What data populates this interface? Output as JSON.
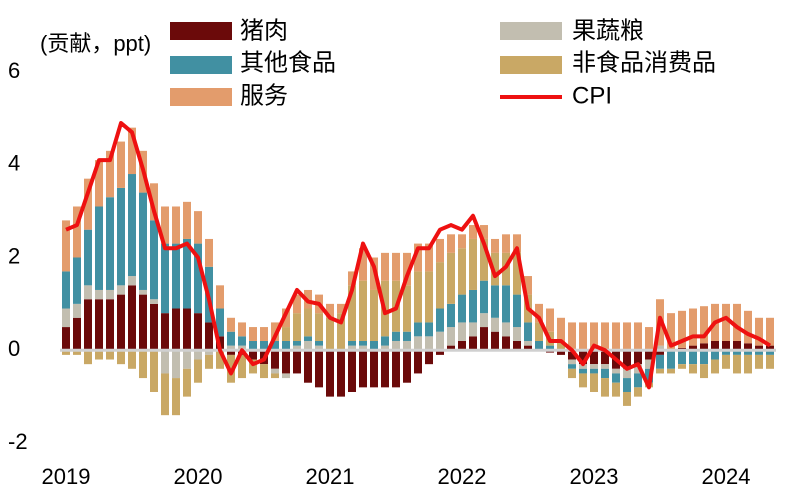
{
  "chart_data": {
    "type": "bar",
    "stacked": true,
    "y_label": "(贡献，ppt)",
    "categories": [
      "2019",
      null,
      null,
      null,
      null,
      null,
      null,
      null,
      null,
      null,
      null,
      null,
      "2020",
      null,
      null,
      null,
      null,
      null,
      null,
      null,
      null,
      null,
      null,
      null,
      "2021",
      null,
      null,
      null,
      null,
      null,
      null,
      null,
      null,
      null,
      null,
      null,
      "2022",
      null,
      null,
      null,
      null,
      null,
      null,
      null,
      null,
      null,
      null,
      null,
      "2023",
      null,
      null,
      null,
      null,
      null,
      null,
      null,
      null,
      null,
      null,
      null,
      "2024",
      null,
      null,
      null,
      null
    ],
    "ylim": [
      -2,
      6
    ],
    "yticks": [
      -2,
      0,
      2,
      4,
      6
    ],
    "series": [
      {
        "name": "猪肉",
        "color": "#6b0a0a",
        "values": [
          0.5,
          0.7,
          1.1,
          1.1,
          1.1,
          1.2,
          1.4,
          1.2,
          1.0,
          0.8,
          0.9,
          0.9,
          0.8,
          0.6,
          0.3,
          -0.1,
          -0.1,
          -0.2,
          -0.3,
          -0.4,
          -0.5,
          -0.5,
          -0.7,
          -0.8,
          -1.0,
          -1.0,
          -0.9,
          -0.8,
          -0.8,
          -0.8,
          -0.8,
          -0.7,
          -0.5,
          -0.3,
          -0.1,
          0.1,
          0.2,
          0.3,
          0.5,
          0.4,
          0.3,
          0.2,
          0.1,
          0.0,
          -0.05,
          -0.1,
          -0.2,
          -0.3,
          -0.3,
          -0.3,
          -0.4,
          -0.4,
          -0.3,
          -0.2,
          -0.1,
          0.0,
          0.05,
          0.1,
          0.15,
          0.2,
          0.2,
          0.2,
          0.15,
          0.1,
          0.1
        ]
      },
      {
        "name": "果蔬粮",
        "color": "#c2beb0",
        "values": [
          0.4,
          0.3,
          0.3,
          0.2,
          0.2,
          0.2,
          0.2,
          0.1,
          0.1,
          -0.5,
          -0.6,
          -0.4,
          -0.2,
          -0.1,
          0.0,
          0.1,
          0.1,
          0.0,
          0.0,
          -0.1,
          -0.1,
          0.1,
          0.2,
          0.1,
          0.0,
          0.0,
          0.1,
          0.1,
          0.0,
          0.1,
          0.2,
          0.2,
          0.3,
          0.3,
          0.4,
          0.4,
          0.4,
          0.3,
          0.3,
          0.3,
          0.3,
          0.3,
          0.1,
          0.0,
          0.0,
          0.0,
          -0.1,
          -0.1,
          -0.1,
          -0.1,
          -0.1,
          -0.2,
          -0.2,
          -0.2,
          0.1,
          0.0,
          0.0,
          0.0,
          0.0,
          0.0,
          0.0,
          0.0,
          0.0,
          0.0,
          0.0
        ]
      },
      {
        "name": "其他食品",
        "color": "#4190a2",
        "values": [
          0.8,
          1.0,
          1.2,
          1.8,
          2.0,
          2.1,
          2.2,
          2.1,
          1.7,
          1.5,
          1.4,
          1.5,
          1.5,
          1.2,
          0.6,
          0.3,
          0.2,
          0.2,
          0.2,
          0.2,
          0.2,
          0.1,
          0.1,
          0.1,
          0.0,
          0.0,
          0.1,
          0.1,
          0.2,
          0.2,
          0.2,
          0.2,
          0.3,
          0.3,
          0.5,
          0.5,
          0.6,
          0.7,
          0.7,
          0.7,
          0.8,
          0.7,
          0.4,
          0.2,
          0.1,
          0.0,
          -0.1,
          -0.1,
          -0.1,
          -0.2,
          -0.2,
          -0.3,
          -0.3,
          -0.3,
          -0.3,
          -0.4,
          -0.3,
          -0.3,
          -0.3,
          -0.2,
          -0.1,
          -0.1,
          -0.1,
          -0.1,
          -0.1
        ]
      },
      {
        "name": "非食品消费品",
        "color": "#c9a865",
        "values": [
          -0.1,
          -0.1,
          -0.3,
          -0.2,
          -0.2,
          -0.3,
          -0.4,
          -0.6,
          -0.9,
          -0.9,
          -0.8,
          -0.6,
          -0.5,
          -0.3,
          -0.4,
          -0.6,
          -0.5,
          -0.3,
          -0.3,
          -0.1,
          0.3,
          0.6,
          0.6,
          0.6,
          0.7,
          0.8,
          1.2,
          1.3,
          1.1,
          1.2,
          1.1,
          1.0,
          1.1,
          1.1,
          1.0,
          1.1,
          1.0,
          1.1,
          0.9,
          0.7,
          0.7,
          0.9,
          0.6,
          0.4,
          0.3,
          0.2,
          -0.2,
          -0.3,
          -0.4,
          -0.4,
          -0.3,
          -0.3,
          -0.2,
          -0.1,
          -0.1,
          -0.1,
          -0.1,
          -0.2,
          -0.3,
          -0.3,
          -0.3,
          -0.4,
          -0.4,
          -0.3,
          -0.3
        ]
      },
      {
        "name": "服务",
        "color": "#e39c6c",
        "values": [
          1.1,
          1.1,
          1.1,
          1.0,
          1.0,
          1.0,
          1.0,
          0.9,
          0.8,
          0.8,
          0.8,
          0.8,
          0.7,
          0.6,
          0.5,
          0.3,
          0.3,
          0.3,
          0.3,
          0.4,
          0.4,
          0.4,
          0.4,
          0.4,
          0.3,
          0.2,
          0.3,
          0.7,
          0.7,
          0.6,
          0.6,
          0.7,
          0.6,
          0.6,
          0.5,
          0.4,
          0.3,
          0.3,
          0.3,
          0.3,
          0.4,
          0.4,
          0.4,
          0.4,
          0.5,
          0.5,
          0.6,
          0.6,
          0.6,
          0.6,
          0.6,
          0.6,
          0.6,
          0.5,
          1.0,
          0.8,
          0.8,
          0.8,
          0.8,
          0.8,
          0.8,
          0.8,
          0.7,
          0.6,
          0.6
        ]
      }
    ],
    "line": {
      "name": "CPI",
      "color": "#ee1111",
      "values": [
        2.6,
        2.7,
        3.4,
        4.1,
        4.1,
        4.9,
        4.7,
        3.9,
        3.0,
        2.2,
        2.2,
        2.3,
        2.0,
        1.1,
        0.0,
        -0.5,
        0.0,
        -0.3,
        -0.2,
        0.3,
        0.8,
        1.3,
        1.05,
        1.0,
        0.7,
        0.6,
        1.3,
        2.3,
        1.8,
        0.8,
        0.9,
        1.6,
        2.2,
        2.2,
        2.6,
        2.7,
        2.6,
        2.9,
        2.3,
        1.6,
        1.8,
        2.2,
        0.9,
        0.7,
        0.2,
        0.2,
        0.0,
        -0.3,
        0.1,
        0.0,
        -0.2,
        -0.4,
        -0.3,
        -0.8,
        0.7,
        0.1,
        0.2,
        0.3,
        0.3,
        0.6,
        0.7,
        0.5,
        0.35,
        0.25,
        0.1
      ]
    }
  }
}
